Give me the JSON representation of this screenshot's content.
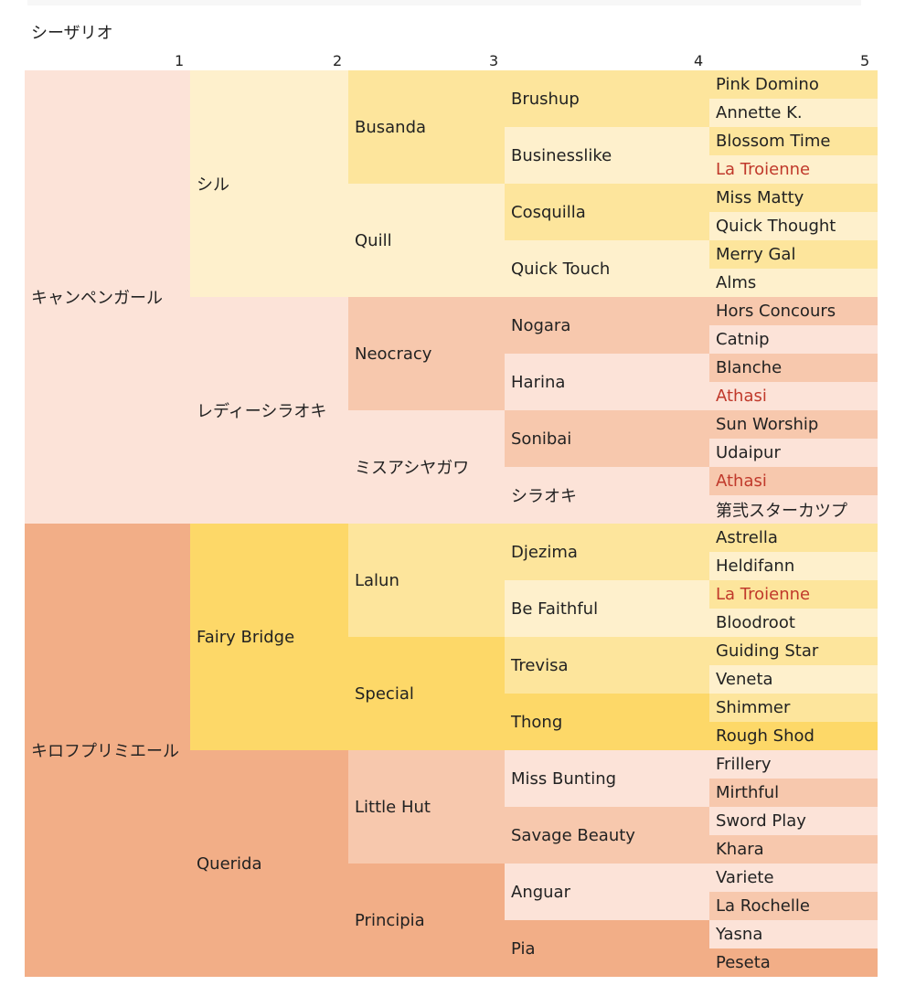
{
  "title": "シーザリオ",
  "generations": [
    "1",
    "2",
    "3",
    "4",
    "5"
  ],
  "colors": {
    "peach_light": "#fce3d8",
    "peach_mid": "#f7c8ad",
    "peach_dark": "#f2ae87",
    "yellow_pale": "#fef0cc",
    "yellow_light": "#fde59c",
    "yellow_gold": "#fdd868",
    "highlight": "#c0392b"
  },
  "pedigree": {
    "name": "",
    "children": [
      {
        "name": "キャンペンガール",
        "color": "peach_light",
        "children": [
          {
            "name": "シル",
            "color": "yellow_pale",
            "children": [
              {
                "name": "Busanda",
                "color": "yellow_light",
                "children": [
                  {
                    "name": "Brushup",
                    "color": "yellow_light",
                    "children": [
                      {
                        "name": "Pink Domino",
                        "color": "yellow_light"
                      },
                      {
                        "name": "Annette K.",
                        "color": "yellow_pale"
                      }
                    ]
                  },
                  {
                    "name": "Businesslike",
                    "color": "yellow_pale",
                    "children": [
                      {
                        "name": "Blossom Time",
                        "color": "yellow_light"
                      },
                      {
                        "name": "La Troienne",
                        "color": "yellow_pale",
                        "highlight": true
                      }
                    ]
                  }
                ]
              },
              {
                "name": "Quill",
                "color": "yellow_pale",
                "children": [
                  {
                    "name": "Cosquilla",
                    "color": "yellow_light",
                    "children": [
                      {
                        "name": "Miss Matty",
                        "color": "yellow_light"
                      },
                      {
                        "name": "Quick Thought",
                        "color": "yellow_pale"
                      }
                    ]
                  },
                  {
                    "name": "Quick Touch",
                    "color": "yellow_pale",
                    "children": [
                      {
                        "name": "Merry Gal",
                        "color": "yellow_light"
                      },
                      {
                        "name": "Alms",
                        "color": "yellow_pale"
                      }
                    ]
                  }
                ]
              }
            ]
          },
          {
            "name": "レディーシラオキ",
            "color": "peach_light",
            "children": [
              {
                "name": "Neocracy",
                "color": "peach_mid",
                "children": [
                  {
                    "name": "Nogara",
                    "color": "peach_mid",
                    "children": [
                      {
                        "name": "Hors Concours",
                        "color": "peach_mid"
                      },
                      {
                        "name": "Catnip",
                        "color": "peach_light"
                      }
                    ]
                  },
                  {
                    "name": "Harina",
                    "color": "peach_light",
                    "children": [
                      {
                        "name": "Blanche",
                        "color": "peach_mid"
                      },
                      {
                        "name": "Athasi",
                        "color": "peach_light",
                        "highlight": true
                      }
                    ]
                  }
                ]
              },
              {
                "name": "ミスアシヤガワ",
                "color": "peach_light",
                "children": [
                  {
                    "name": "Sonibai",
                    "color": "peach_mid",
                    "children": [
                      {
                        "name": "Sun Worship",
                        "color": "peach_mid"
                      },
                      {
                        "name": "Udaipur",
                        "color": "peach_light"
                      }
                    ]
                  },
                  {
                    "name": "シラオキ",
                    "color": "peach_light",
                    "children": [
                      {
                        "name": "Athasi",
                        "color": "peach_mid",
                        "highlight": true
                      },
                      {
                        "name": "第弐スターカツプ",
                        "color": "peach_light"
                      }
                    ]
                  }
                ]
              }
            ]
          }
        ]
      },
      {
        "name": "キロフプリミエール",
        "color": "peach_dark",
        "children": [
          {
            "name": "Fairy Bridge",
            "color": "yellow_gold",
            "children": [
              {
                "name": "Lalun",
                "color": "yellow_light",
                "children": [
                  {
                    "name": "Djezima",
                    "color": "yellow_light",
                    "children": [
                      {
                        "name": "Astrella",
                        "color": "yellow_light"
                      },
                      {
                        "name": "Heldifann",
                        "color": "yellow_pale"
                      }
                    ]
                  },
                  {
                    "name": "Be Faithful",
                    "color": "yellow_pale",
                    "children": [
                      {
                        "name": "La Troienne",
                        "color": "yellow_light",
                        "highlight": true
                      },
                      {
                        "name": "Bloodroot",
                        "color": "yellow_pale"
                      }
                    ]
                  }
                ]
              },
              {
                "name": "Special",
                "color": "yellow_gold",
                "children": [
                  {
                    "name": "Trevisa",
                    "color": "yellow_light",
                    "children": [
                      {
                        "name": "Guiding Star",
                        "color": "yellow_light"
                      },
                      {
                        "name": "Veneta",
                        "color": "yellow_pale"
                      }
                    ]
                  },
                  {
                    "name": "Thong",
                    "color": "yellow_gold",
                    "children": [
                      {
                        "name": "Shimmer",
                        "color": "yellow_light"
                      },
                      {
                        "name": "Rough Shod",
                        "color": "yellow_gold"
                      }
                    ]
                  }
                ]
              }
            ]
          },
          {
            "name": "Querida",
            "color": "peach_dark",
            "children": [
              {
                "name": "Little Hut",
                "color": "peach_mid",
                "children": [
                  {
                    "name": "Miss Bunting",
                    "color": "peach_light",
                    "children": [
                      {
                        "name": "Frillery",
                        "color": "peach_light"
                      },
                      {
                        "name": "Mirthful",
                        "color": "peach_mid"
                      }
                    ]
                  },
                  {
                    "name": "Savage Beauty",
                    "color": "peach_mid",
                    "children": [
                      {
                        "name": "Sword Play",
                        "color": "peach_light"
                      },
                      {
                        "name": "Khara",
                        "color": "peach_mid"
                      }
                    ]
                  }
                ]
              },
              {
                "name": "Principia",
                "color": "peach_dark",
                "children": [
                  {
                    "name": "Anguar",
                    "color": "peach_light",
                    "children": [
                      {
                        "name": "Variete",
                        "color": "peach_light"
                      },
                      {
                        "name": "La Rochelle",
                        "color": "peach_mid"
                      }
                    ]
                  },
                  {
                    "name": "Pia",
                    "color": "peach_dark",
                    "children": [
                      {
                        "name": "Yasna",
                        "color": "peach_light"
                      },
                      {
                        "name": "Peseta",
                        "color": "peach_dark"
                      }
                    ]
                  }
                ]
              }
            ]
          }
        ]
      }
    ]
  }
}
